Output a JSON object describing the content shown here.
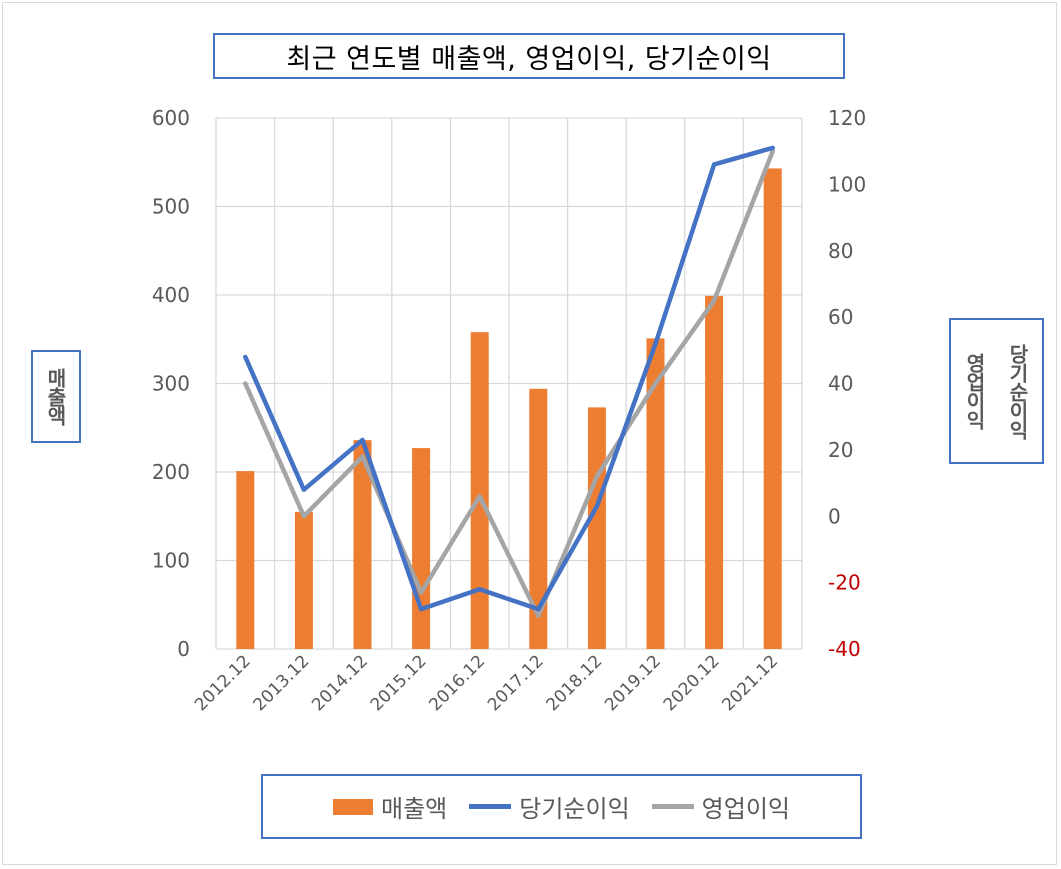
{
  "chart_data": {
    "type": "bar",
    "title": "최근 연도별 매출액, 영업이익, 당기순이익",
    "ylabel": "매출액",
    "y2label_left": "당기순이익",
    "y2label_right": "영업이익",
    "categories": [
      "2012.12",
      "2013.12",
      "2014.12",
      "2015.12",
      "2016.12",
      "2017.12",
      "2018.12",
      "2019.12",
      "2020.12",
      "2021.12"
    ],
    "ylim": [
      0,
      600
    ],
    "yticks": [
      "600",
      "500",
      "400",
      "300",
      "200",
      "100",
      "0"
    ],
    "y2lim": [
      -40,
      120
    ],
    "y2ticks": [
      "120",
      "100",
      "80",
      "60",
      "40",
      "20",
      "0",
      "-20",
      "-40"
    ],
    "grid": true,
    "legend_position": "bottom",
    "series": [
      {
        "name": "매출액",
        "type": "bar",
        "axis": "left",
        "color": "#ed7d31",
        "values": [
          201,
          155,
          236,
          227,
          358,
          294,
          273,
          351,
          399,
          543
        ]
      },
      {
        "name": "당기순이익",
        "type": "line",
        "axis": "right",
        "color": "#4472c4",
        "values": [
          48,
          8,
          23,
          -28,
          -22,
          -28,
          3,
          52,
          106,
          111
        ]
      },
      {
        "name": "영업이익",
        "type": "line",
        "axis": "right",
        "color": "#a5a5a5",
        "values": [
          40,
          0,
          18,
          -23,
          6,
          -30,
          12,
          40,
          65,
          110
        ]
      }
    ],
    "negative_tick_color": "#c00000"
  }
}
